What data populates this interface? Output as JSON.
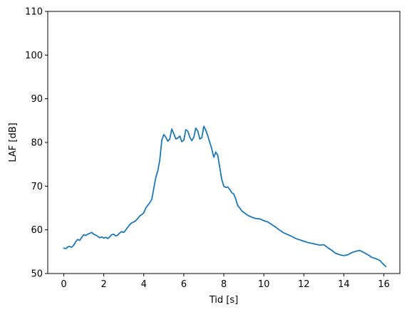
{
  "chart_data": {
    "type": "line",
    "title": "",
    "xlabel": "Tid [s]",
    "ylabel": "LAF [dB]",
    "xlim": [
      -0.8,
      16.8
    ],
    "ylim": [
      50,
      110
    ],
    "xticks": [
      0,
      2,
      4,
      6,
      8,
      10,
      12,
      14,
      16
    ],
    "yticks": [
      50,
      60,
      70,
      80,
      90,
      100,
      110
    ],
    "xtick_labels": [
      "0",
      "2",
      "4",
      "6",
      "8",
      "10",
      "12",
      "14",
      "16"
    ],
    "ytick_labels": [
      "50",
      "60",
      "70",
      "80",
      "90",
      "100",
      "110"
    ],
    "grid": false,
    "legend": "none",
    "series": [
      {
        "color": "#1f77b4",
        "x": [
          0.0,
          0.1,
          0.2,
          0.3,
          0.4,
          0.5,
          0.6,
          0.7,
          0.8,
          0.9,
          1.0,
          1.1,
          1.2,
          1.3,
          1.4,
          1.5,
          1.6,
          1.7,
          1.8,
          1.9,
          2.0,
          2.1,
          2.2,
          2.3,
          2.4,
          2.5,
          2.6,
          2.7,
          2.8,
          2.9,
          3.0,
          3.1,
          3.2,
          3.3,
          3.4,
          3.5,
          3.6,
          3.7,
          3.8,
          3.9,
          4.0,
          4.1,
          4.2,
          4.3,
          4.4,
          4.5,
          4.6,
          4.7,
          4.8,
          4.9,
          5.0,
          5.1,
          5.2,
          5.3,
          5.4,
          5.5,
          5.6,
          5.7,
          5.8,
          5.9,
          6.0,
          6.1,
          6.2,
          6.3,
          6.4,
          6.5,
          6.6,
          6.7,
          6.8,
          6.9,
          7.0,
          7.1,
          7.2,
          7.3,
          7.4,
          7.5,
          7.6,
          7.7,
          7.8,
          7.9,
          8.0,
          8.1,
          8.2,
          8.3,
          8.4,
          8.5,
          8.6,
          8.7,
          8.8,
          8.9,
          9.0,
          9.2,
          9.4,
          9.6,
          9.8,
          10.0,
          10.2,
          10.4,
          10.6,
          10.8,
          11.0,
          11.2,
          11.4,
          11.6,
          11.8,
          12.0,
          12.2,
          12.4,
          12.6,
          12.8,
          13.0,
          13.2,
          13.4,
          13.6,
          13.8,
          14.0,
          14.2,
          14.4,
          14.6,
          14.8,
          15.0,
          15.2,
          15.4,
          15.6,
          15.8,
          16.0,
          16.1
        ],
        "y": [
          55.8,
          55.7,
          56.1,
          56.2,
          56.0,
          56.5,
          57.3,
          57.8,
          57.6,
          58.3,
          58.9,
          58.7,
          59.0,
          59.2,
          59.4,
          59.0,
          58.8,
          58.5,
          58.2,
          58.4,
          58.1,
          58.3,
          58.0,
          58.4,
          58.9,
          59.0,
          58.6,
          58.8,
          59.3,
          59.6,
          59.4,
          60.0,
          60.6,
          61.2,
          61.6,
          61.8,
          62.1,
          62.6,
          63.2,
          63.5,
          63.9,
          65.0,
          65.6,
          66.2,
          67.0,
          69.5,
          72.0,
          73.5,
          76.0,
          80.5,
          81.8,
          81.2,
          80.3,
          80.8,
          83.1,
          82.0,
          80.8,
          81.0,
          81.5,
          80.2,
          80.5,
          82.9,
          82.6,
          81.2,
          80.4,
          81.2,
          83.3,
          82.6,
          80.8,
          81.1,
          83.7,
          82.8,
          81.5,
          80.0,
          78.5,
          76.6,
          77.8,
          77.0,
          74.2,
          71.5,
          70.0,
          69.7,
          69.8,
          69.2,
          68.5,
          68.2,
          67.0,
          65.5,
          65.0,
          64.3,
          64.0,
          63.3,
          62.9,
          62.6,
          62.5,
          62.1,
          61.8,
          61.2,
          60.6,
          59.9,
          59.3,
          58.9,
          58.5,
          58.0,
          57.7,
          57.4,
          57.1,
          56.9,
          56.7,
          56.5,
          56.6,
          55.9,
          55.3,
          54.6,
          54.3,
          54.1,
          54.3,
          54.8,
          55.1,
          55.3,
          54.8,
          54.3,
          53.7,
          53.4,
          53.0,
          52.0,
          51.6
        ]
      }
    ]
  }
}
